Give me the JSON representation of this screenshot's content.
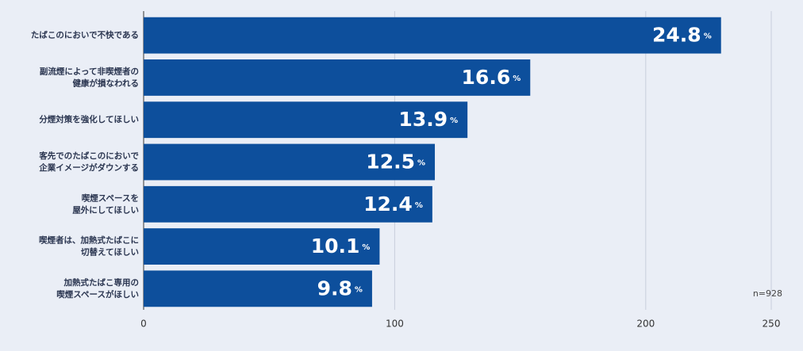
{
  "chart_data": {
    "type": "bar",
    "orientation": "horizontal",
    "categories": [
      "たばこのにおいで不快である",
      "副流煙によって非喫煙者の\n健康が損なわれる",
      "分煙対策を強化してほしい",
      "客先でのたばこのにおいで\n企業イメージがダウンする",
      "喫煙スペースを\n屋外にしてほしい",
      "喫煙者は、加熱式たばこに\n切替えてほしい",
      "加熱式たばこ専用の\n喫煙スペースがほしい"
    ],
    "values": [
      230,
      154,
      129,
      116,
      115,
      94,
      91
    ],
    "value_labels": [
      "24.8%",
      "16.6%",
      "13.9%",
      "12.5%",
      "12.4%",
      "10.1%",
      "9.8%"
    ],
    "color": "#0d4f9c",
    "xlim": [
      0,
      250
    ],
    "xticks": [
      0,
      100,
      200,
      250
    ],
    "grid": true,
    "annotation": "n=928"
  }
}
